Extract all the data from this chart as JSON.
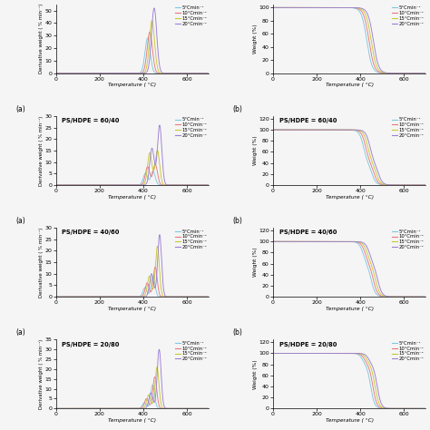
{
  "rows": 4,
  "cols": 2,
  "heating_rates": [
    5,
    10,
    15,
    20
  ],
  "dtg_colors": [
    "#7EC8E3",
    "#E87878",
    "#C8C832",
    "#9B7FD4"
  ],
  "tg_colors_row0": [
    "#7EC8E3",
    "#E87878",
    "#C8C832",
    "#9B7FD4"
  ],
  "tg_colors_row1": [
    "#7EC8E3",
    "#E87878",
    "#C8C832",
    "#9B7FD4"
  ],
  "tg_colors_row2": [
    "#7EC8E3",
    "#E87878",
    "#C8C832",
    "#9B7FD4"
  ],
  "tg_colors_row3": [
    "#7EC8E3",
    "#E87878",
    "#C8C832",
    "#9B7FD4"
  ],
  "row_labels": [
    "",
    "PS/HDPE = 60/40",
    "PS/HDPE = 40/60",
    "PS/HDPE = 20/80"
  ],
  "dtg_ylim_row0": [
    0,
    55
  ],
  "dtg_ylim_row1": [
    0,
    30
  ],
  "dtg_ylim_row2": [
    0,
    30
  ],
  "dtg_ylim_row3": [
    0,
    35
  ],
  "dtg_yticks_row0": [
    0,
    10,
    20,
    30,
    40,
    50
  ],
  "dtg_yticks_row1": [
    0,
    5,
    10,
    15,
    20,
    25,
    30
  ],
  "dtg_yticks_row2": [
    0,
    5,
    10,
    15,
    20,
    25,
    30
  ],
  "dtg_yticks_row3": [
    0,
    5,
    10,
    15,
    20,
    25,
    30,
    35
  ],
  "tg_ylim_row0": [
    0,
    105
  ],
  "tg_ylim_row1": [
    0,
    125
  ],
  "tg_ylim_row2": [
    0,
    125
  ],
  "tg_ylim_row3": [
    0,
    125
  ],
  "tg_yticks_row0": [
    0,
    20,
    40,
    60,
    80,
    100
  ],
  "tg_yticks_row1": [
    0,
    20,
    40,
    60,
    80,
    100,
    120
  ],
  "tg_yticks_row2": [
    0,
    20,
    40,
    60,
    80,
    100,
    120
  ],
  "tg_yticks_row3": [
    0,
    20,
    40,
    60,
    80,
    100,
    120
  ],
  "xlim": [
    0,
    700
  ],
  "xticks": [
    0,
    200,
    400,
    600
  ],
  "xlabel": "Temperature ( °C)",
  "dtg_ylabel": "Derivative weight ( % min⁻¹)",
  "tg_ylabel": "Weight (%)",
  "figsize": [
    4.74,
    4.74
  ],
  "dpi": 100,
  "background_color": "#f5f5f5",
  "legend_labels": [
    "5°Cmin⁻¹",
    "10°Cmin⁻¹",
    "15°Cmin⁻¹",
    "20°Cmin⁻¹"
  ]
}
